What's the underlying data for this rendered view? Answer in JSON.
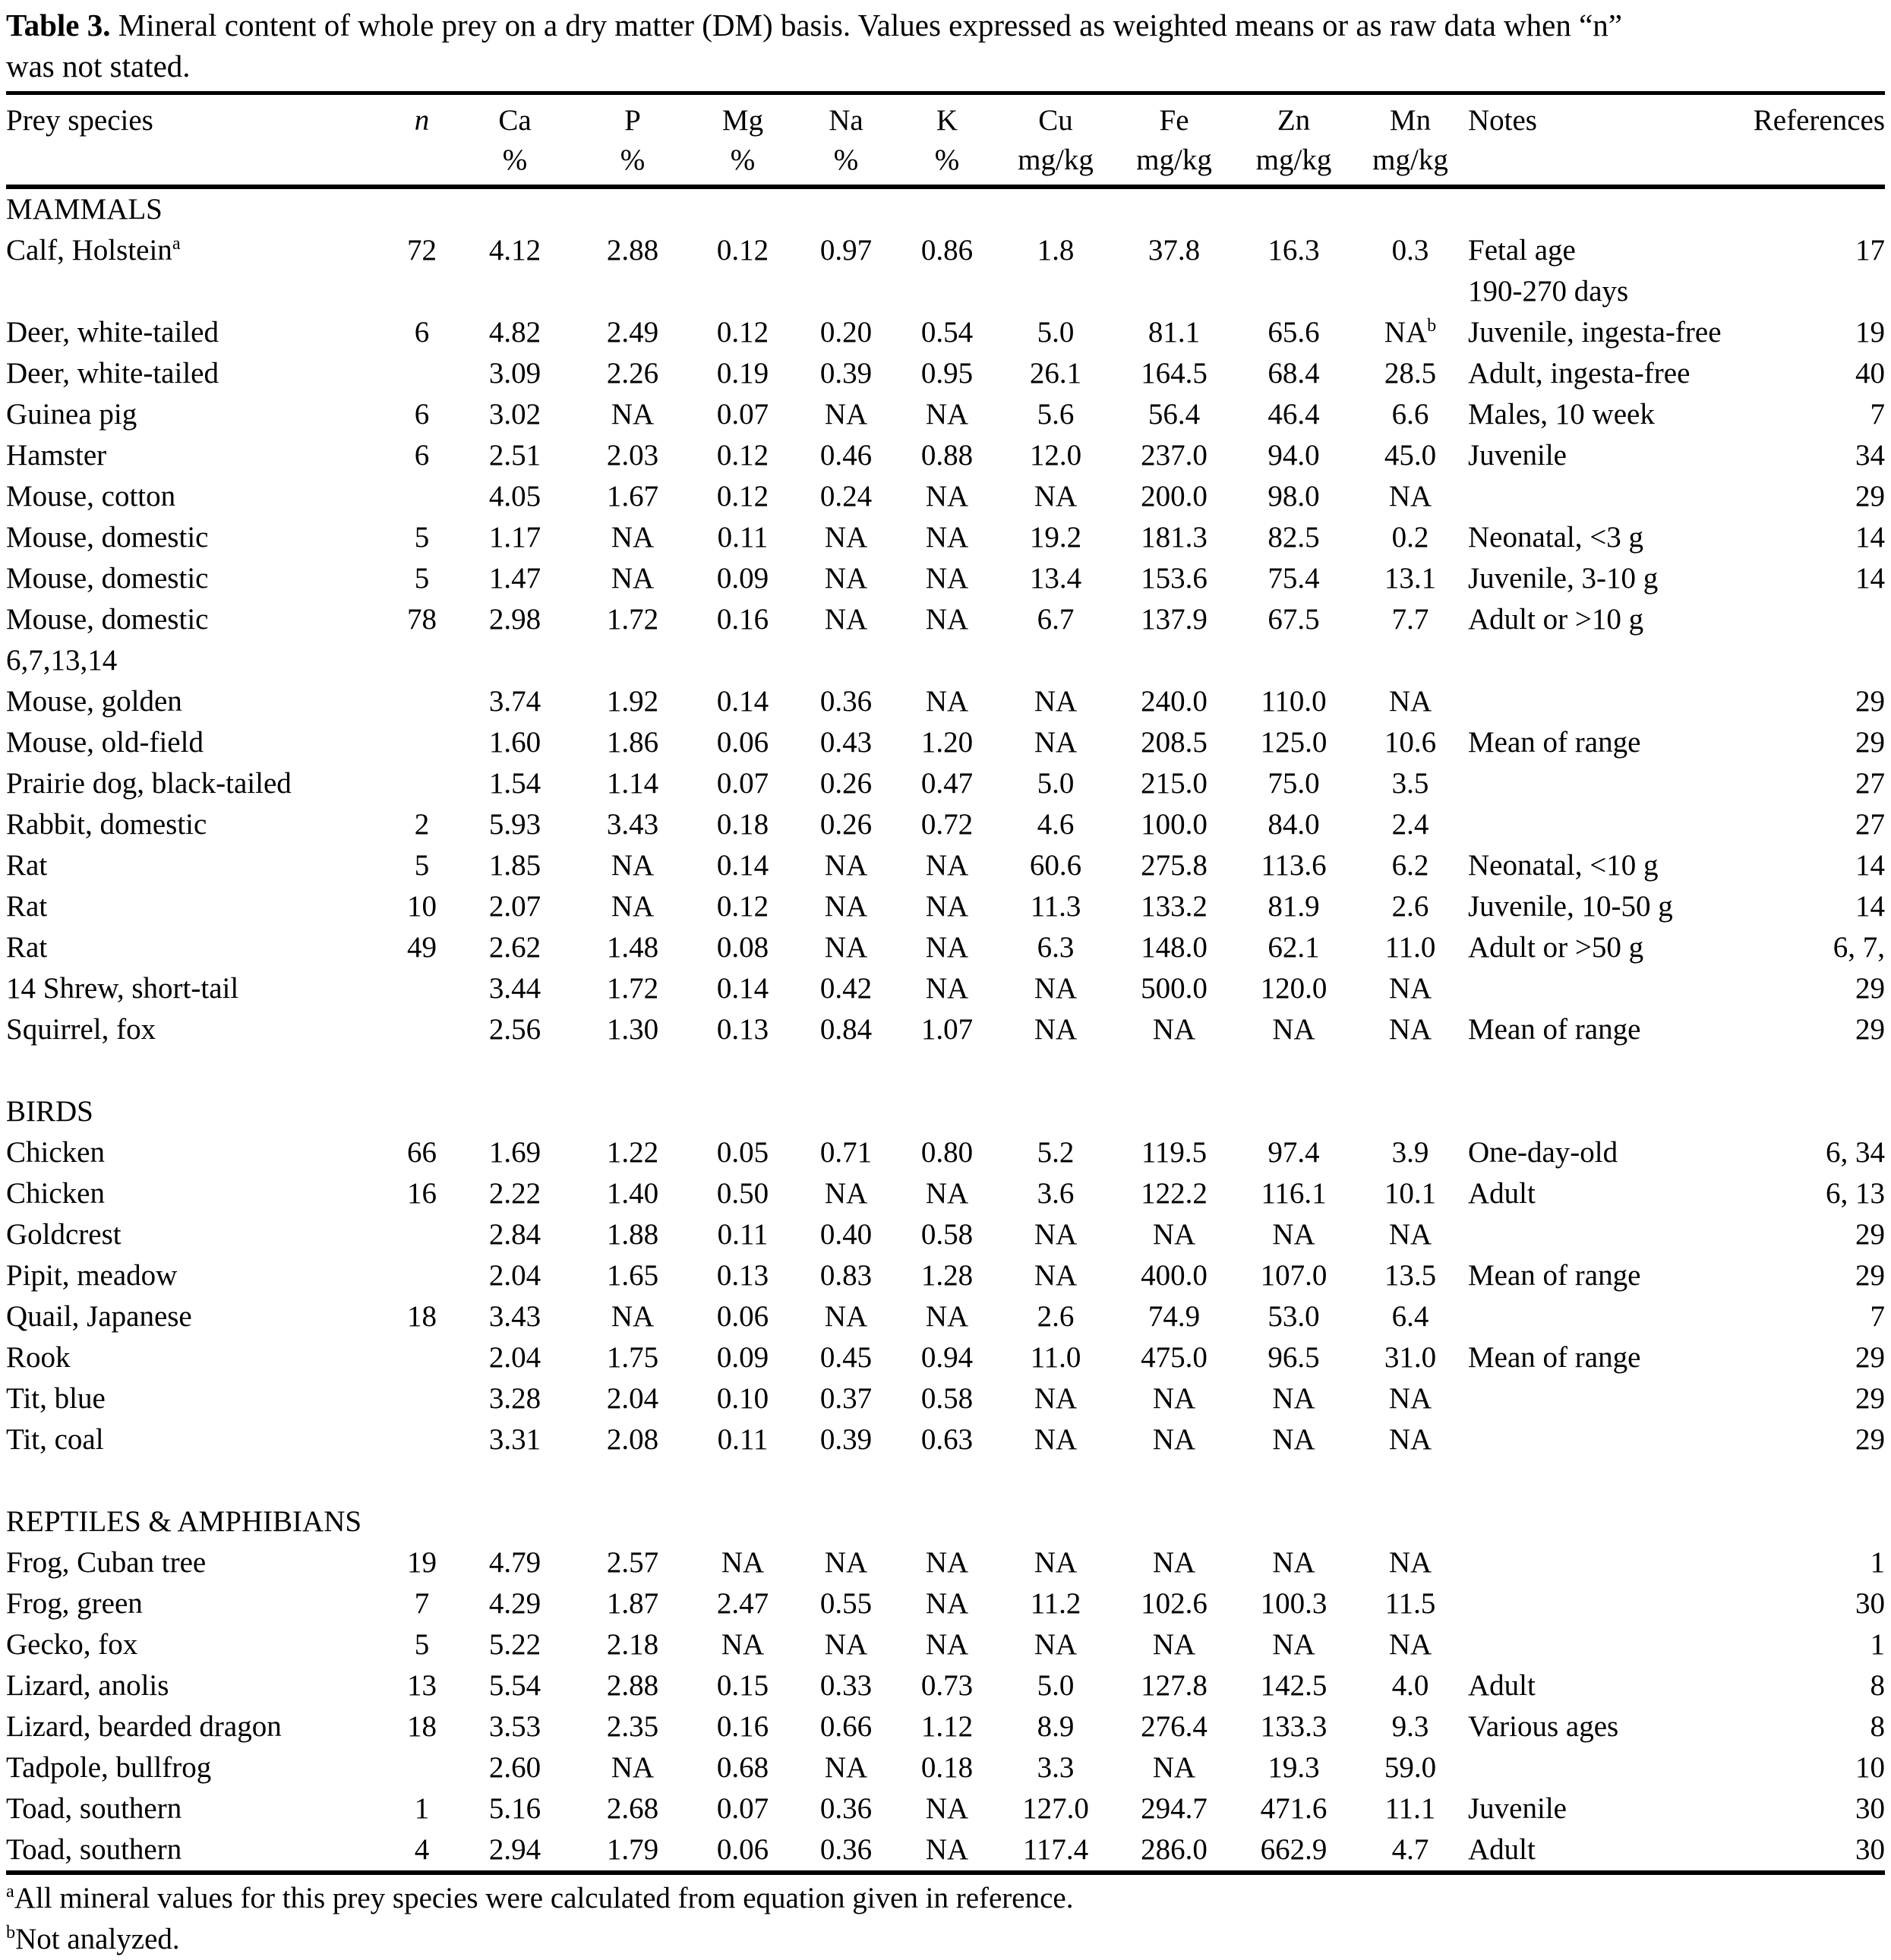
{
  "caption": {
    "label": "Table 3.",
    "text": " Mineral content of whole prey on a dry matter (DM) basis.  Values expressed as weighted means or as raw data when “n”\nwas not stated."
  },
  "columns": {
    "species": {
      "line1": "Prey species",
      "line2": ""
    },
    "n": {
      "line1": "n",
      "line2": ""
    },
    "ca": {
      "line1": "Ca",
      "line2": "%"
    },
    "p": {
      "line1": "P",
      "line2": "%"
    },
    "mg": {
      "line1": "Mg",
      "line2": "%"
    },
    "na": {
      "line1": "Na",
      "line2": "%"
    },
    "k": {
      "line1": "K",
      "line2": "%"
    },
    "cu": {
      "line1": "Cu",
      "line2": "mg/kg"
    },
    "fe": {
      "line1": "Fe",
      "line2": "mg/kg"
    },
    "zn": {
      "line1": "Zn",
      "line2": "mg/kg"
    },
    "mn": {
      "line1": "Mn",
      "line2": "mg/kg"
    },
    "notes": {
      "line1": "Notes",
      "line2": ""
    },
    "refs": {
      "line1": "References",
      "line2": ""
    }
  },
  "sections": [
    {
      "name": "MAMMALS",
      "rows": [
        {
          "species": "Calf, Holstein",
          "species_sup": "a",
          "n": "72",
          "ca": "4.12",
          "p": "2.88",
          "mg": "0.12",
          "na": "0.97",
          "k": "0.86",
          "cu": "1.8",
          "fe": "37.8",
          "zn": "16.3",
          "mn": "0.3",
          "notes": "Fetal age\n190-270 days",
          "refs": "17"
        },
        {
          "species": "Deer, white-tailed",
          "n": "6",
          "ca": "4.82",
          "p": "2.49",
          "mg": "0.12",
          "na": "0.20",
          "k": "0.54",
          "cu": "5.0",
          "fe": "81.1",
          "zn": "65.6",
          "mn": "NA",
          "mn_sup": "b",
          "notes": "Juvenile, ingesta-free",
          "refs": "19"
        },
        {
          "species": "Deer, white-tailed",
          "n": "",
          "ca": "3.09",
          "p": "2.26",
          "mg": "0.19",
          "na": "0.39",
          "k": "0.95",
          "cu": "26.1",
          "fe": "164.5",
          "zn": "68.4",
          "mn": "28.5",
          "notes": "Adult, ingesta-free",
          "refs": "40"
        },
        {
          "species": "Guinea pig",
          "n": "6",
          "ca": "3.02",
          "p": "NA",
          "mg": "0.07",
          "na": "NA",
          "k": "NA",
          "cu": "5.6",
          "fe": "56.4",
          "zn": "46.4",
          "mn": "6.6",
          "notes": "Males, 10 week",
          "refs": "7"
        },
        {
          "species": "Hamster",
          "n": "6",
          "ca": "2.51",
          "p": "2.03",
          "mg": "0.12",
          "na": "0.46",
          "k": "0.88",
          "cu": "12.0",
          "fe": "237.0",
          "zn": "94.0",
          "mn": "45.0",
          "notes": "Juvenile",
          "refs": "34"
        },
        {
          "species": "Mouse, cotton",
          "n": "",
          "ca": "4.05",
          "p": "1.67",
          "mg": "0.12",
          "na": "0.24",
          "k": "NA",
          "cu": "NA",
          "fe": "200.0",
          "zn": "98.0",
          "mn": "NA",
          "notes": "",
          "refs": "29"
        },
        {
          "species": "Mouse, domestic",
          "n": "5",
          "ca": "1.17",
          "p": "NA",
          "mg": "0.11",
          "na": "NA",
          "k": "NA",
          "cu": "19.2",
          "fe": "181.3",
          "zn": "82.5",
          "mn": "0.2",
          "notes": "Neonatal, <3 g",
          "refs": "14"
        },
        {
          "species": "Mouse, domestic",
          "n": "5",
          "ca": "1.47",
          "p": "NA",
          "mg": "0.09",
          "na": "NA",
          "k": "NA",
          "cu": "13.4",
          "fe": "153.6",
          "zn": "75.4",
          "mn": "13.1",
          "notes": "Juvenile, 3-10 g",
          "refs": "14"
        },
        {
          "species": "Mouse, domestic",
          "n": "78",
          "ca": "2.98",
          "p": "1.72",
          "mg": "0.16",
          "na": "NA",
          "k": "NA",
          "cu": "6.7",
          "fe": "137.9",
          "zn": "67.5",
          "mn": "7.7",
          "notes": "Adult or >10 g",
          "refs": ""
        },
        {
          "species": "6,7,13,14",
          "n": "",
          "ca": "",
          "p": "",
          "mg": "",
          "na": "",
          "k": "",
          "cu": "",
          "fe": "",
          "zn": "",
          "mn": "",
          "notes": "",
          "refs": ""
        },
        {
          "species": "Mouse, golden",
          "n": "",
          "ca": "3.74",
          "p": "1.92",
          "mg": "0.14",
          "na": "0.36",
          "k": "NA",
          "cu": "NA",
          "fe": "240.0",
          "zn": "110.0",
          "mn": "NA",
          "notes": "",
          "refs": "29"
        },
        {
          "species": "Mouse, old-field",
          "n": "",
          "ca": "1.60",
          "p": "1.86",
          "mg": "0.06",
          "na": "0.43",
          "k": "1.20",
          "cu": "NA",
          "fe": "208.5",
          "zn": "125.0",
          "mn": "10.6",
          "notes": "Mean of range",
          "refs": "29"
        },
        {
          "species": "Prairie dog, black-tailed",
          "n": "",
          "ca": "1.54",
          "p": "1.14",
          "mg": "0.07",
          "na": "0.26",
          "k": "0.47",
          "cu": "5.0",
          "fe": "215.0",
          "zn": "75.0",
          "mn": "3.5",
          "notes": "",
          "refs": "27"
        },
        {
          "species": "Rabbit, domestic",
          "n": "2",
          "ca": "5.93",
          "p": "3.43",
          "mg": "0.18",
          "na": "0.26",
          "k": "0.72",
          "cu": "4.6",
          "fe": "100.0",
          "zn": "84.0",
          "mn": "2.4",
          "notes": "",
          "refs": "27"
        },
        {
          "species": "Rat",
          "n": "5",
          "ca": "1.85",
          "p": "NA",
          "mg": "0.14",
          "na": "NA",
          "k": "NA",
          "cu": "60.6",
          "fe": "275.8",
          "zn": "113.6",
          "mn": "6.2",
          "notes": "Neonatal, <10 g",
          "refs": "14"
        },
        {
          "species": "Rat",
          "n": "10",
          "ca": "2.07",
          "p": "NA",
          "mg": "0.12",
          "na": "NA",
          "k": "NA",
          "cu": "11.3",
          "fe": "133.2",
          "zn": "81.9",
          "mn": "2.6",
          "notes": "Juvenile, 10-50 g",
          "refs": "14"
        },
        {
          "species": "Rat",
          "n": "49",
          "ca": "2.62",
          "p": "1.48",
          "mg": "0.08",
          "na": "NA",
          "k": "NA",
          "cu": "6.3",
          "fe": "148.0",
          "zn": "62.1",
          "mn": "11.0",
          "notes": "Adult or >50 g",
          "refs": "6, 7,"
        },
        {
          "species": "14 Shrew, short-tail",
          "n": "",
          "ca": "3.44",
          "p": "1.72",
          "mg": "0.14",
          "na": "0.42",
          "k": "NA",
          "cu": "NA",
          "fe": "500.0",
          "zn": "120.0",
          "mn": "NA",
          "notes": "",
          "refs": "29"
        },
        {
          "species": "Squirrel, fox",
          "n": "",
          "ca": "2.56",
          "p": "1.30",
          "mg": "0.13",
          "na": "0.84",
          "k": "1.07",
          "cu": "NA",
          "fe": "NA",
          "zn": "NA",
          "mn": "NA",
          "notes": "Mean of range",
          "refs": "29"
        }
      ]
    },
    {
      "name": "BIRDS",
      "rows": [
        {
          "species": "Chicken",
          "n": "66",
          "ca": "1.69",
          "p": "1.22",
          "mg": "0.05",
          "na": "0.71",
          "k": "0.80",
          "cu": "5.2",
          "fe": "119.5",
          "zn": "97.4",
          "mn": "3.9",
          "notes": "One-day-old",
          "refs": "6, 34"
        },
        {
          "species": "Chicken",
          "n": "16",
          "ca": "2.22",
          "p": "1.40",
          "mg": "0.50",
          "na": "NA",
          "k": "NA",
          "cu": "3.6",
          "fe": "122.2",
          "zn": "116.1",
          "mn": "10.1",
          "notes": "Adult",
          "refs": "6, 13"
        },
        {
          "species": "Goldcrest",
          "n": "",
          "ca": "2.84",
          "p": "1.88",
          "mg": "0.11",
          "na": "0.40",
          "k": "0.58",
          "cu": "NA",
          "fe": "NA",
          "zn": "NA",
          "mn": "NA",
          "notes": "",
          "refs": "29"
        },
        {
          "species": "Pipit, meadow",
          "n": "",
          "ca": "2.04",
          "p": "1.65",
          "mg": "0.13",
          "na": "0.83",
          "k": "1.28",
          "cu": "NA",
          "fe": "400.0",
          "zn": "107.0",
          "mn": "13.5",
          "notes": "Mean of range",
          "refs": "29"
        },
        {
          "species": "Quail, Japanese",
          "n": "18",
          "ca": "3.43",
          "p": "NA",
          "mg": "0.06",
          "na": "NA",
          "k": "NA",
          "cu": "2.6",
          "fe": "74.9",
          "zn": "53.0",
          "mn": "6.4",
          "notes": "",
          "refs": "7"
        },
        {
          "species": "Rook",
          "n": "",
          "ca": "2.04",
          "p": "1.75",
          "mg": "0.09",
          "na": "0.45",
          "k": "0.94",
          "cu": "11.0",
          "fe": "475.0",
          "zn": "96.5",
          "mn": "31.0",
          "notes": "Mean of range",
          "refs": "29"
        },
        {
          "species": "Tit, blue",
          "n": "",
          "ca": "3.28",
          "p": "2.04",
          "mg": "0.10",
          "na": "0.37",
          "k": "0.58",
          "cu": "NA",
          "fe": "NA",
          "zn": "NA",
          "mn": "NA",
          "notes": "",
          "refs": "29"
        },
        {
          "species": "Tit, coal",
          "n": "",
          "ca": "3.31",
          "p": "2.08",
          "mg": "0.11",
          "na": "0.39",
          "k": "0.63",
          "cu": "NA",
          "fe": "NA",
          "zn": "NA",
          "mn": "NA",
          "notes": "",
          "refs": "29"
        }
      ]
    },
    {
      "name": "REPTILES & AMPHIBIANS",
      "rows": [
        {
          "species": "Frog, Cuban tree",
          "n": "19",
          "ca": "4.79",
          "p": "2.57",
          "mg": "NA",
          "na": "NA",
          "k": "NA",
          "cu": "NA",
          "fe": "NA",
          "zn": "NA",
          "mn": "NA",
          "notes": "",
          "refs": "1"
        },
        {
          "species": "Frog, green",
          "n": "7",
          "ca": "4.29",
          "p": "1.87",
          "mg": "2.47",
          "na": "0.55",
          "k": "NA",
          "cu": "11.2",
          "fe": "102.6",
          "zn": "100.3",
          "mn": "11.5",
          "notes": "",
          "refs": "30"
        },
        {
          "species": "Gecko, fox",
          "n": "5",
          "ca": "5.22",
          "p": "2.18",
          "mg": "NA",
          "na": "NA",
          "k": "NA",
          "cu": "NA",
          "fe": "NA",
          "zn": "NA",
          "mn": "NA",
          "notes": "",
          "refs": "1"
        },
        {
          "species": "Lizard, anolis",
          "n": "13",
          "ca": "5.54",
          "p": "2.88",
          "mg": "0.15",
          "na": "0.33",
          "k": "0.73",
          "cu": "5.0",
          "fe": "127.8",
          "zn": "142.5",
          "mn": "4.0",
          "notes": "Adult",
          "refs": "8"
        },
        {
          "species": "Lizard, bearded dragon",
          "n": "18",
          "ca": "3.53",
          "p": "2.35",
          "mg": "0.16",
          "na": "0.66",
          "k": "1.12",
          "cu": "8.9",
          "fe": "276.4",
          "zn": "133.3",
          "mn": "9.3",
          "notes": "Various ages",
          "refs": "8"
        },
        {
          "species": "Tadpole, bullfrog",
          "n": "",
          "ca": "2.60",
          "p": "NA",
          "mg": "0.68",
          "na": "NA",
          "k": "0.18",
          "cu": "3.3",
          "fe": "NA",
          "zn": "19.3",
          "mn": "59.0",
          "notes": "",
          "refs": "10"
        },
        {
          "species": "Toad, southern",
          "n": "1",
          "ca": "5.16",
          "p": "2.68",
          "mg": "0.07",
          "na": "0.36",
          "k": "NA",
          "cu": "127.0",
          "fe": "294.7",
          "zn": "471.6",
          "mn": "11.1",
          "notes": "Juvenile",
          "refs": "30"
        },
        {
          "species": "Toad, southern",
          "n": "4",
          "ca": "2.94",
          "p": "1.79",
          "mg": "0.06",
          "na": "0.36",
          "k": "NA",
          "cu": "117.4",
          "fe": "286.0",
          "zn": "662.9",
          "mn": "4.7",
          "notes": "Adult",
          "refs": "30"
        }
      ]
    }
  ],
  "footnotes": [
    {
      "sup": "a",
      "text": "All mineral values for this prey species were calculated from equation given in reference."
    },
    {
      "sup": "b",
      "text": "Not analyzed."
    }
  ]
}
